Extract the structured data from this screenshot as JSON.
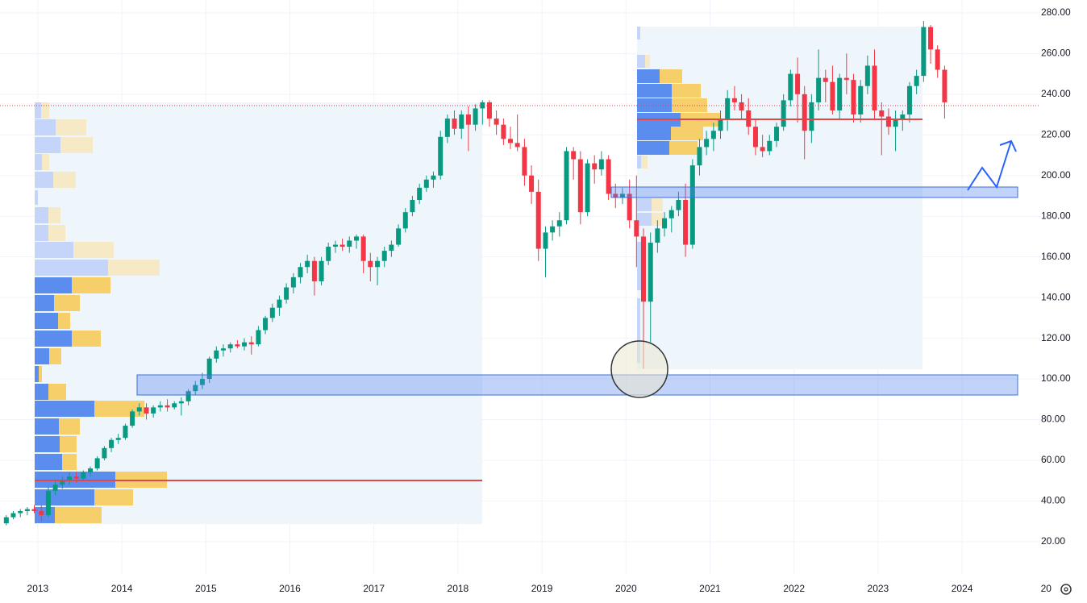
{
  "chart_data": {
    "type": "candlestick",
    "x": [
      2012.625,
      2012.708,
      2012.792,
      2012.875,
      2012.958,
      2013.042,
      2013.125,
      2013.208,
      2013.292,
      2013.375,
      2013.458,
      2013.542,
      2013.625,
      2013.708,
      2013.792,
      2013.875,
      2013.958,
      2014.042,
      2014.125,
      2014.208,
      2014.292,
      2014.375,
      2014.458,
      2014.542,
      2014.625,
      2014.708,
      2014.792,
      2014.875,
      2014.958,
      2015.042,
      2015.125,
      2015.208,
      2015.292,
      2015.375,
      2015.458,
      2015.542,
      2015.625,
      2015.708,
      2015.792,
      2015.875,
      2015.958,
      2016.042,
      2016.125,
      2016.208,
      2016.292,
      2016.375,
      2016.458,
      2016.542,
      2016.625,
      2016.708,
      2016.792,
      2016.875,
      2016.958,
      2017.042,
      2017.125,
      2017.208,
      2017.292,
      2017.375,
      2017.458,
      2017.542,
      2017.625,
      2017.708,
      2017.792,
      2017.875,
      2017.958,
      2018.042,
      2018.125,
      2018.208,
      2018.292,
      2018.375,
      2018.458,
      2018.542,
      2018.625,
      2018.708,
      2018.792,
      2018.875,
      2018.958,
      2019.042,
      2019.125,
      2019.208,
      2019.292,
      2019.375,
      2019.458,
      2019.542,
      2019.625,
      2019.708,
      2019.792,
      2019.875,
      2019.958,
      2020.042,
      2020.125,
      2020.208,
      2020.292,
      2020.375,
      2020.458,
      2020.542,
      2020.625,
      2020.708,
      2020.792,
      2020.875,
      2020.958,
      2021.042,
      2021.125,
      2021.208,
      2021.292,
      2021.375,
      2021.458,
      2021.542,
      2021.625,
      2021.708,
      2021.792,
      2021.875,
      2021.958,
      2022.042,
      2022.125,
      2022.208,
      2022.292,
      2022.375,
      2022.458,
      2022.542,
      2022.625,
      2022.708,
      2022.792,
      2022.875,
      2022.958,
      2023.042,
      2023.125,
      2023.208,
      2023.292,
      2023.375,
      2023.458,
      2023.542,
      2023.625,
      2023.708,
      2023.792
    ],
    "open": [
      29,
      32,
      34,
      35,
      36,
      35,
      33,
      45,
      48,
      50,
      52,
      51,
      54,
      56,
      61,
      66,
      70,
      71,
      77,
      84,
      86,
      83,
      86,
      87,
      86,
      88,
      89,
      94,
      97,
      100,
      110,
      114,
      115,
      117,
      116,
      118,
      117,
      124,
      130,
      135,
      139,
      145,
      150,
      155,
      158,
      148,
      158,
      165,
      166,
      165,
      168,
      170,
      158,
      155,
      158,
      163,
      166,
      174,
      182,
      188,
      194,
      198,
      200,
      219,
      228,
      223,
      230,
      225,
      233,
      236,
      228,
      225,
      218,
      216,
      214,
      200,
      192,
      164,
      172,
      175,
      178,
      212,
      208,
      182,
      206,
      203,
      208,
      191,
      189,
      191,
      178,
      170,
      138,
      167,
      174,
      179,
      183,
      188,
      166,
      205,
      214,
      218,
      222,
      228,
      238,
      236,
      232,
      224,
      214,
      212,
      217,
      224,
      237,
      250,
      240,
      222,
      236,
      248,
      246,
      232,
      248,
      247,
      230,
      244,
      254,
      232,
      229,
      224,
      228,
      230,
      244,
      249,
      273,
      262,
      252
    ],
    "high": [
      33,
      35,
      36,
      37,
      38,
      38,
      47,
      50,
      52,
      54,
      54,
      55,
      57,
      62,
      67,
      71,
      73,
      78,
      85,
      88,
      88,
      87,
      89,
      90,
      89,
      91,
      95,
      99,
      103,
      111,
      116,
      117,
      118,
      119,
      120,
      121,
      126,
      131,
      137,
      141,
      147,
      152,
      157,
      161,
      160,
      160,
      167,
      168,
      169,
      170,
      171,
      171,
      162,
      160,
      165,
      168,
      176,
      184,
      190,
      196,
      200,
      202,
      222,
      230,
      232,
      232,
      234,
      235,
      237,
      237,
      232,
      228,
      224,
      230,
      218,
      205,
      198,
      175,
      178,
      182,
      214,
      214,
      212,
      208,
      210,
      212,
      210,
      196,
      194,
      198,
      200,
      174,
      172,
      178,
      182,
      185,
      192,
      196,
      208,
      218,
      222,
      226,
      232,
      242,
      244,
      240,
      238,
      228,
      220,
      220,
      226,
      240,
      252,
      258,
      244,
      240,
      262,
      252,
      254,
      250,
      260,
      250,
      247,
      259,
      262,
      236,
      233,
      232,
      232,
      246,
      252,
      276,
      274,
      264,
      254
    ],
    "low": [
      28,
      31,
      32,
      33,
      34,
      30,
      32,
      43,
      46,
      48,
      49,
      50,
      52,
      55,
      60,
      64,
      68,
      70,
      76,
      82,
      80,
      81,
      84,
      84,
      85,
      82,
      87,
      92,
      95,
      98,
      108,
      111,
      113,
      115,
      114,
      112,
      116,
      122,
      128,
      131,
      137,
      142,
      147,
      152,
      141,
      146,
      156,
      162,
      163,
      162,
      164,
      152,
      148,
      146,
      155,
      160,
      165,
      172,
      180,
      186,
      192,
      194,
      198,
      216,
      220,
      218,
      212,
      222,
      225,
      224,
      220,
      215,
      213,
      212,
      195,
      186,
      158,
      150,
      168,
      170,
      176,
      198,
      176,
      180,
      196,
      200,
      188,
      184,
      186,
      174,
      155,
      105,
      118,
      162,
      170,
      172,
      180,
      160,
      164,
      200,
      210,
      212,
      218,
      222,
      232,
      228,
      220,
      210,
      209,
      210,
      214,
      222,
      234,
      226,
      208,
      216,
      232,
      236,
      230,
      228,
      240,
      226,
      226,
      240,
      228,
      210,
      220,
      212,
      222,
      226,
      240,
      246,
      255,
      248,
      228
    ],
    "close": [
      32,
      34,
      35,
      36,
      35,
      33,
      45,
      48,
      50,
      52,
      51,
      54,
      56,
      61,
      66,
      70,
      71,
      77,
      84,
      86,
      83,
      86,
      87,
      86,
      88,
      89,
      94,
      97,
      100,
      110,
      114,
      115,
      117,
      116,
      118,
      117,
      124,
      130,
      135,
      139,
      145,
      150,
      155,
      158,
      148,
      158,
      165,
      166,
      165,
      168,
      170,
      158,
      155,
      158,
      163,
      166,
      174,
      182,
      188,
      194,
      198,
      200,
      219,
      228,
      223,
      230,
      225,
      233,
      236,
      228,
      225,
      218,
      216,
      214,
      200,
      192,
      164,
      172,
      175,
      178,
      212,
      208,
      182,
      206,
      203,
      208,
      191,
      189,
      191,
      178,
      170,
      138,
      167,
      174,
      179,
      183,
      188,
      166,
      205,
      214,
      218,
      222,
      228,
      238,
      236,
      232,
      224,
      214,
      212,
      217,
      224,
      237,
      250,
      240,
      222,
      236,
      248,
      246,
      232,
      248,
      247,
      230,
      244,
      254,
      232,
      229,
      224,
      228,
      230,
      244,
      249,
      273,
      262,
      252,
      236
    ],
    "up_color": "#089981",
    "down_color": "#f23645",
    "xlim": [
      2012.55,
      2024.93
    ],
    "ylim": [
      4.1,
      286.3
    ],
    "xticks": [
      2013,
      2014,
      2015,
      2016,
      2017,
      2018,
      2019,
      2020,
      2021,
      2022,
      2023,
      2024,
      {
        "value": 2025,
        "label": "20"
      }
    ],
    "yticks": [
      {
        "value": 20,
        "label": "20.00"
      },
      {
        "value": 40,
        "label": "40.00"
      },
      {
        "value": 60,
        "label": "60.00"
      },
      {
        "value": 80,
        "label": "80.00"
      },
      {
        "value": 100,
        "label": "100.00"
      },
      {
        "value": 120,
        "label": "120.00"
      },
      {
        "value": 140,
        "label": "140.00"
      },
      {
        "value": 160,
        "label": "160.00"
      },
      {
        "value": 180,
        "label": "180.00"
      },
      {
        "value": 200,
        "label": "200.00"
      },
      {
        "value": 220,
        "label": "220.00"
      },
      {
        "value": 240,
        "label": "240.00"
      },
      {
        "value": 260,
        "label": "260.00"
      },
      {
        "value": 280,
        "label": "280.00"
      }
    ],
    "grid": true
  }
}
